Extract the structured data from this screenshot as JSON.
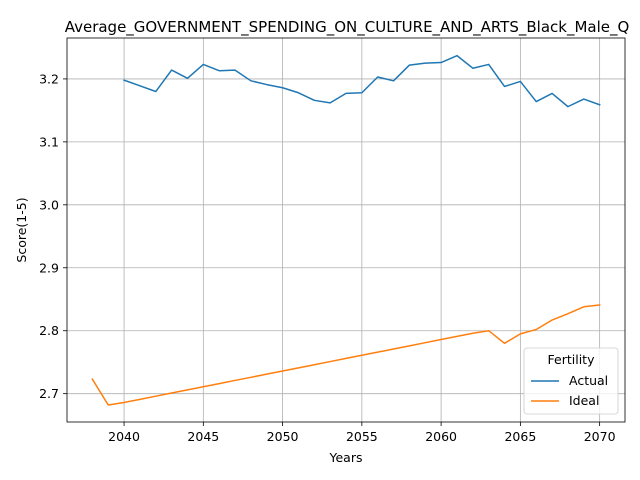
{
  "chart_data": {
    "type": "line",
    "title": "Average_GOVERNMENT_SPENDING_ON_CULTURE_AND_ARTS_Black_Male_Q",
    "xlabel": "Years",
    "ylabel": "Score(1-5)",
    "xlim": [
      2036.4,
      2071.6
    ],
    "ylim": [
      2.655,
      3.265
    ],
    "xticks": [
      2040,
      2045,
      2050,
      2055,
      2060,
      2065,
      2070
    ],
    "yticks": [
      2.7,
      2.8,
      2.9,
      3.0,
      3.1,
      3.2
    ],
    "ytick_labels": [
      "2.7",
      "2.8",
      "2.9",
      "3.0",
      "3.1",
      "3.2"
    ],
    "grid": true,
    "legend": {
      "title": "Fertility",
      "placement": "lower-right"
    },
    "series": [
      {
        "name": "Actual",
        "color": "#1f77b4",
        "x": [
          2040,
          2041,
          2042,
          2043,
          2044,
          2045,
          2046,
          2047,
          2048,
          2049,
          2050,
          2051,
          2052,
          2053,
          2054,
          2055,
          2056,
          2057,
          2058,
          2059,
          2060,
          2061,
          2062,
          2063,
          2064,
          2065,
          2066,
          2067,
          2068,
          2069,
          2070
        ],
        "y": [
          3.198,
          3.189,
          3.18,
          3.214,
          3.201,
          3.223,
          3.213,
          3.214,
          3.197,
          3.191,
          3.186,
          3.178,
          3.166,
          3.162,
          3.177,
          3.178,
          3.203,
          3.197,
          3.222,
          3.225,
          3.226,
          3.237,
          3.217,
          3.223,
          3.188,
          3.196,
          3.164,
          3.177,
          3.156,
          3.168,
          3.159
        ]
      },
      {
        "name": "Ideal",
        "color": "#ff7f0e",
        "x": [
          2038,
          2039,
          2040,
          2041,
          2042,
          2043,
          2044,
          2045,
          2046,
          2047,
          2048,
          2049,
          2050,
          2051,
          2052,
          2053,
          2054,
          2055,
          2056,
          2057,
          2058,
          2059,
          2060,
          2061,
          2062,
          2063,
          2064,
          2065,
          2066,
          2067,
          2068,
          2069,
          2070
        ],
        "y": [
          2.723,
          2.682,
          2.686,
          2.691,
          2.696,
          2.701,
          2.706,
          2.711,
          2.716,
          2.721,
          2.726,
          2.731,
          2.736,
          2.741,
          2.746,
          2.751,
          2.756,
          2.761,
          2.766,
          2.771,
          2.776,
          2.781,
          2.786,
          2.791,
          2.796,
          2.8,
          2.78,
          2.795,
          2.802,
          2.817,
          2.827,
          2.838,
          2.841
        ]
      }
    ]
  }
}
